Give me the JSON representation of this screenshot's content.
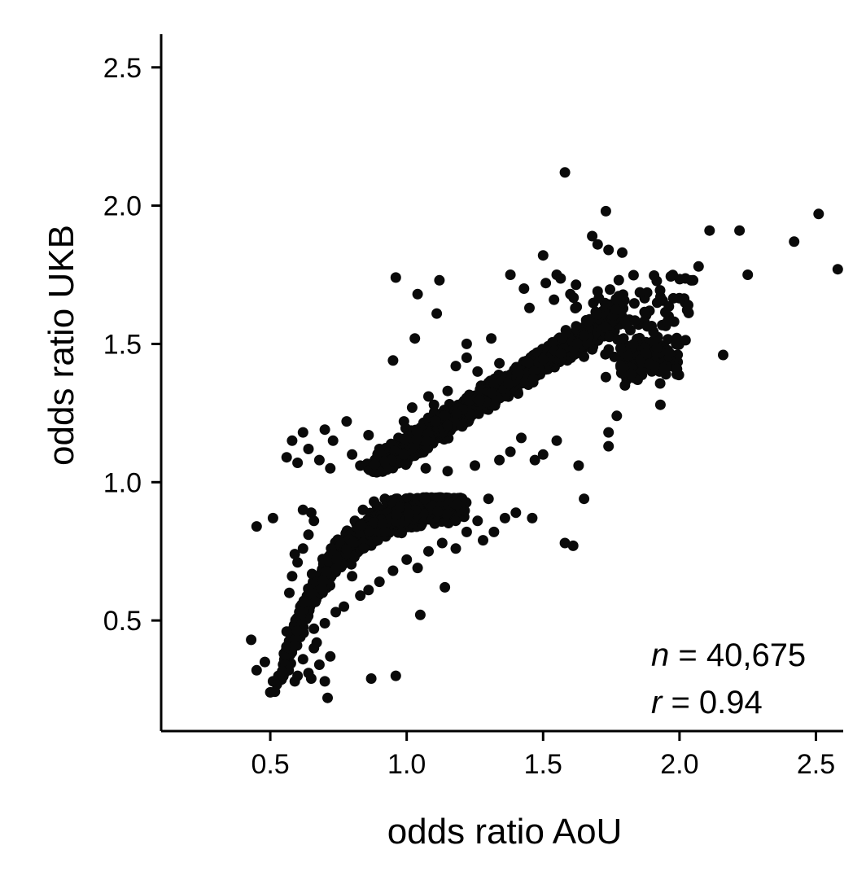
{
  "chart_data": {
    "type": "scatter",
    "title": "",
    "xlabel": "odds ratio AoU",
    "ylabel": "odds ratio UKB",
    "xlim": [
      0.1,
      2.6
    ],
    "ylim": [
      0.1,
      2.62
    ],
    "xticks": [
      0.5,
      1.0,
      1.5,
      2.0,
      2.5
    ],
    "xtick_labels": [
      "0.5",
      "1.0",
      "1.5",
      "2.0",
      "2.5"
    ],
    "yticks": [
      0.5,
      1.0,
      1.5,
      2.0,
      2.5
    ],
    "ytick_labels": [
      "0.5",
      "1.0",
      "1.5",
      "2.0",
      "2.5"
    ],
    "grid": false,
    "legend": "none",
    "point_color": "#0a0a0a",
    "annotations": {
      "n_var": "n",
      "n_rest": " = 40,675",
      "r_var": "r",
      "r_rest": " = 0.94"
    },
    "series": [
      {
        "values_description_count": 40675,
        "points": [
          [
            1.58,
            2.12
          ],
          [
            2.51,
            1.97
          ],
          [
            2.42,
            1.87
          ],
          [
            2.58,
            1.77
          ],
          [
            2.22,
            1.91
          ],
          [
            2.11,
            1.91
          ],
          [
            2.25,
            1.75
          ],
          [
            2.16,
            1.46
          ],
          [
            1.73,
            1.98
          ],
          [
            1.68,
            1.89
          ],
          [
            1.7,
            1.86
          ],
          [
            1.74,
            1.84
          ],
          [
            1.79,
            1.83
          ],
          [
            2.07,
            1.78
          ],
          [
            2.05,
            1.73
          ],
          [
            0.96,
            1.74
          ],
          [
            1.12,
            1.73
          ],
          [
            1.04,
            1.68
          ],
          [
            1.11,
            1.61
          ],
          [
            1.03,
            1.52
          ],
          [
            0.95,
            1.44
          ],
          [
            1.22,
            1.5
          ],
          [
            1.31,
            1.52
          ],
          [
            1.63,
            1.06
          ],
          [
            1.65,
            0.94
          ],
          [
            1.74,
            1.18
          ],
          [
            1.74,
            1.13
          ],
          [
            1.77,
            1.24
          ],
          [
            1.93,
            1.28
          ],
          [
            1.73,
            1.38
          ],
          [
            1.8,
            1.35
          ],
          [
            1.95,
            1.39
          ],
          [
            1.99,
            1.39
          ],
          [
            1.9,
            1.46
          ],
          [
            1.93,
            1.44
          ],
          [
            1.97,
            1.42
          ],
          [
            2.02,
            1.65
          ],
          [
            1.96,
            1.6
          ],
          [
            1.85,
            1.57
          ],
          [
            1.82,
            1.55
          ],
          [
            1.89,
            1.62
          ],
          [
            1.93,
            1.67
          ],
          [
            1.87,
            1.68
          ],
          [
            0.45,
            0.84
          ],
          [
            0.51,
            0.87
          ],
          [
            0.43,
            0.43
          ],
          [
            0.45,
            0.32
          ],
          [
            0.5,
            0.24
          ],
          [
            0.71,
            0.22
          ],
          [
            0.87,
            0.29
          ],
          [
            0.96,
            0.3
          ],
          [
            1.05,
            0.52
          ],
          [
            1.14,
            0.62
          ],
          [
            1.04,
            0.69
          ],
          [
            1.58,
            0.78
          ],
          [
            1.61,
            0.77
          ],
          [
            1.46,
            0.87
          ],
          [
            1.4,
            0.89
          ],
          [
            0.56,
            1.09
          ],
          [
            0.58,
            1.15
          ],
          [
            0.6,
            1.07
          ],
          [
            0.62,
            1.18
          ],
          [
            0.7,
            1.19
          ],
          [
            0.73,
            1.15
          ],
          [
            0.78,
            1.22
          ],
          [
            0.64,
            1.12
          ],
          [
            0.68,
            1.08
          ],
          [
            0.72,
            1.05
          ],
          [
            0.8,
            1.1
          ],
          [
            0.83,
            1.06
          ],
          [
            0.86,
            1.17
          ],
          [
            0.9,
            1.12
          ],
          [
            0.92,
            1.09
          ],
          [
            0.97,
            1.16
          ],
          [
            1.47,
            1.08
          ],
          [
            1.38,
            1.11
          ],
          [
            1.42,
            1.16
          ],
          [
            1.55,
            1.15
          ],
          [
            1.5,
            1.1
          ],
          [
            0.48,
            0.35
          ],
          [
            0.53,
            0.3
          ],
          [
            0.55,
            0.38
          ],
          [
            0.56,
            0.33
          ],
          [
            0.58,
            0.41
          ],
          [
            0.6,
            0.3
          ],
          [
            0.62,
            0.36
          ],
          [
            0.64,
            0.31
          ],
          [
            0.66,
            0.4
          ],
          [
            0.68,
            0.34
          ],
          [
            0.7,
            0.28
          ],
          [
            0.72,
            0.37
          ],
          [
            0.51,
            0.28
          ],
          [
            0.59,
            0.28
          ],
          [
            0.65,
            0.29
          ],
          [
            0.56,
            0.46
          ],
          [
            0.61,
            0.44
          ],
          [
            0.67,
            0.42
          ],
          [
            1.72,
            1.62
          ],
          [
            1.75,
            1.58
          ],
          [
            1.79,
            1.5
          ],
          [
            1.68,
            1.48
          ],
          [
            1.62,
            1.52
          ],
          [
            1.7,
            1.69
          ],
          [
            1.6,
            1.68
          ],
          [
            1.55,
            1.75
          ],
          [
            1.51,
            1.72
          ],
          [
            1.45,
            1.63
          ],
          [
            1.43,
            1.7
          ],
          [
            1.38,
            1.75
          ],
          [
            1.5,
            1.82
          ],
          [
            1.54,
            1.66
          ],
          [
            1.34,
            1.43
          ],
          [
            1.3,
            1.36
          ],
          [
            1.26,
            1.4
          ],
          [
            1.22,
            1.45
          ],
          [
            1.18,
            1.42
          ],
          [
            1.15,
            1.33
          ],
          [
            1.1,
            1.28
          ],
          [
            1.08,
            1.31
          ],
          [
            1.02,
            1.27
          ],
          [
            0.99,
            1.22
          ],
          [
            1.07,
            1.05
          ],
          [
            1.15,
            1.04
          ],
          [
            1.25,
            1.06
          ],
          [
            1.34,
            1.08
          ],
          [
            1.3,
            0.94
          ],
          [
            1.2,
            0.92
          ],
          [
            1.1,
            0.89
          ],
          [
            1.22,
            0.82
          ],
          [
            1.28,
            0.79
          ],
          [
            1.32,
            0.82
          ],
          [
            1.26,
            0.86
          ],
          [
            1.36,
            0.87
          ],
          [
            1.18,
            0.76
          ],
          [
            1.13,
            0.78
          ],
          [
            1.08,
            0.75
          ],
          [
            1.0,
            0.72
          ],
          [
            0.95,
            0.68
          ],
          [
            0.9,
            0.64
          ],
          [
            0.86,
            0.61
          ],
          [
            0.83,
            0.59
          ],
          [
            0.8,
            0.66
          ],
          [
            0.77,
            0.55
          ],
          [
            0.74,
            0.53
          ],
          [
            0.7,
            0.49
          ],
          [
            0.66,
            0.47
          ],
          [
            0.63,
            0.52
          ],
          [
            0.61,
            0.55
          ],
          [
            0.65,
            0.58
          ],
          [
            0.67,
            0.62
          ],
          [
            0.69,
            0.67
          ],
          [
            0.72,
            0.72
          ],
          [
            0.75,
            0.78
          ],
          [
            0.78,
            0.82
          ],
          [
            0.81,
            0.86
          ],
          [
            0.84,
            0.9
          ],
          [
            0.88,
            0.93
          ],
          [
            0.92,
            0.94
          ],
          [
            0.96,
            0.94
          ],
          [
            1.0,
            0.93
          ],
          [
            1.05,
            0.92
          ],
          [
            1.1,
            0.93
          ],
          [
            1.15,
            0.92
          ],
          [
            1.2,
            0.9
          ],
          [
            0.62,
            0.76
          ],
          [
            0.64,
            0.81
          ],
          [
            0.66,
            0.86
          ],
          [
            0.6,
            0.71
          ],
          [
            0.58,
            0.66
          ],
          [
            0.57,
            0.6
          ],
          [
            0.59,
            0.74
          ],
          [
            0.62,
            0.9
          ],
          [
            0.65,
            0.89
          ]
        ]
      }
    ]
  }
}
